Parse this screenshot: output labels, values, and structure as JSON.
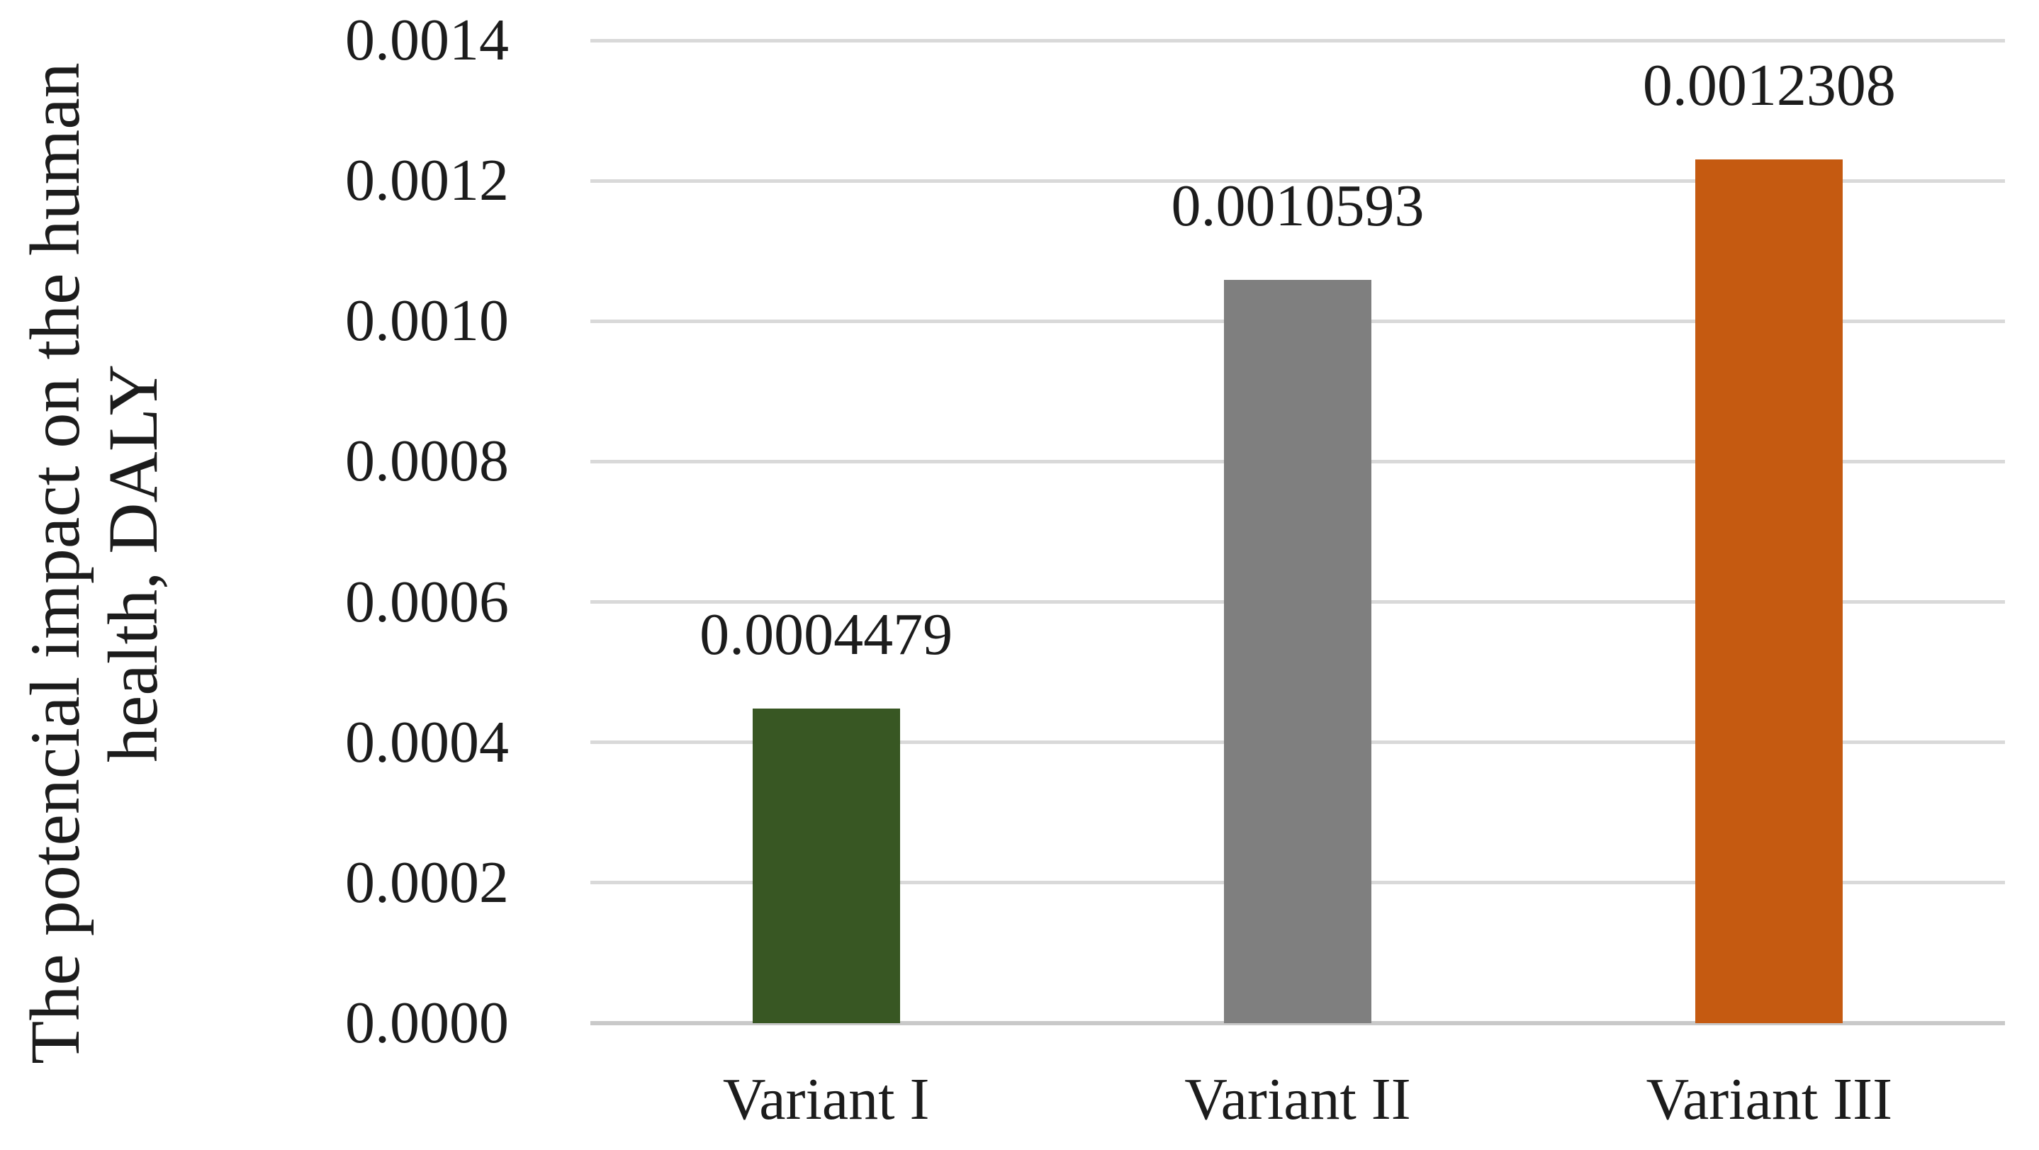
{
  "figure": {
    "background": "#FFFFFF",
    "text_color": "#1C1C1C",
    "gridline_color": "#D9D9D9",
    "baseline_color": "#C9C9C9"
  },
  "chart_data": {
    "type": "bar",
    "title": "",
    "xlabel": "",
    "ylabel": "The potencial impact on the human health, DALY",
    "ylabel_lines": [
      "The potencial impact on the human",
      "health, DALY"
    ],
    "categories": [
      "Variant I",
      "Variant II",
      "Variant III"
    ],
    "values": [
      0.0004479,
      0.0010593,
      0.0012308
    ],
    "value_labels": [
      "0.0004479",
      "0.0010593",
      "0.0012308"
    ],
    "bar_colors": [
      "#385723",
      "#7F7F7F",
      "#C55A11"
    ],
    "y_ticks": [
      {
        "value": 0.0,
        "label": "0.0000"
      },
      {
        "value": 0.0002,
        "label": "0.0002"
      },
      {
        "value": 0.0004,
        "label": "0.0004"
      },
      {
        "value": 0.0006,
        "label": "0.0006"
      },
      {
        "value": 0.0008,
        "label": "0.0008"
      },
      {
        "value": 0.001,
        "label": "0.0010"
      },
      {
        "value": 0.0012,
        "label": "0.0012"
      },
      {
        "value": 0.0014,
        "label": "0.0014"
      }
    ],
    "ylim": [
      0,
      0.0014
    ],
    "grid": true,
    "legend": false
  }
}
